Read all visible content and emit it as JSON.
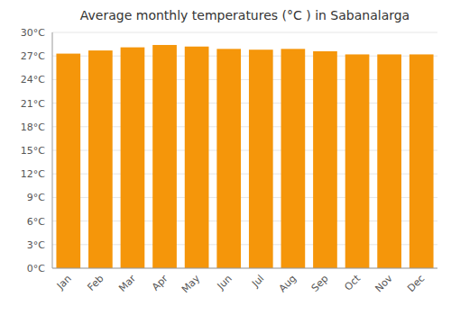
{
  "chart_data": {
    "type": "bar",
    "title": "Average monthly temperatures (°C ) in Sabanalarga",
    "categories": [
      "Jan",
      "Feb",
      "Mar",
      "Apr",
      "May",
      "Jun",
      "Jul",
      "Aug",
      "Sep",
      "Oct",
      "Nov",
      "Dec"
    ],
    "values": [
      27.3,
      27.7,
      28.1,
      28.4,
      28.2,
      27.9,
      27.8,
      27.9,
      27.6,
      27.2,
      27.2,
      27.2
    ],
    "color": "#F5960A",
    "ylim": [
      0,
      30
    ],
    "yticks": [
      {
        "value": 0,
        "label": "0°C"
      },
      {
        "value": 3,
        "label": "3°C"
      },
      {
        "value": 6,
        "label": "6°C"
      },
      {
        "value": 9,
        "label": "9°C"
      },
      {
        "value": 12,
        "label": "12°C"
      },
      {
        "value": 15,
        "label": "15°C"
      },
      {
        "value": 18,
        "label": "18°C"
      },
      {
        "value": 21,
        "label": "21°C"
      },
      {
        "value": 24,
        "label": "24°C"
      },
      {
        "value": 27,
        "label": "27°C"
      },
      {
        "value": 30,
        "label": "30°C"
      }
    ],
    "grid": true
  }
}
